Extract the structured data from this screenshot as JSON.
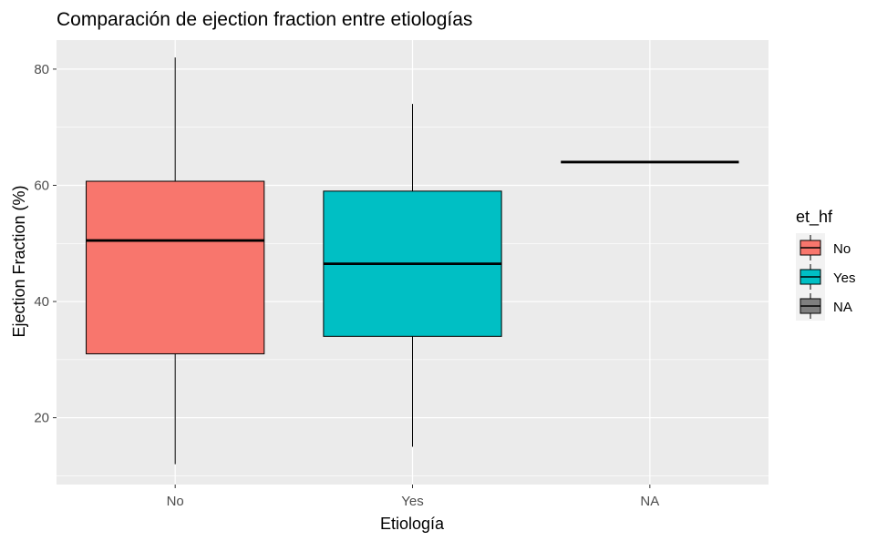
{
  "chart_data": {
    "type": "boxplot",
    "title": "Comparación de ejection fraction entre etiologías",
    "xlabel": "Etiología",
    "ylabel": "Ejection Fraction (%)",
    "categories": [
      "No",
      "Yes",
      "NA"
    ],
    "ylim": [
      8.5,
      85
    ],
    "y_ticks": [
      20,
      40,
      60,
      80
    ],
    "grid": true,
    "legend": {
      "title": "et_hf",
      "placement": "right",
      "items": [
        {
          "label": "No",
          "color": "#F8766D"
        },
        {
          "label": "Yes",
          "color": "#00BFC4"
        },
        {
          "label": "NA",
          "color": "#7F7F7F"
        }
      ]
    },
    "boxes": [
      {
        "category": "No",
        "min": 12,
        "q1": 31,
        "median": 50.5,
        "q3": 60.7,
        "max": 82,
        "fill": "#F8766D"
      },
      {
        "category": "Yes",
        "min": 15,
        "q1": 34,
        "median": 46.5,
        "q3": 59,
        "max": 74,
        "fill": "#00BFC4"
      },
      {
        "category": "NA",
        "min": 64,
        "q1": 64,
        "median": 64,
        "q3": 64,
        "max": 64,
        "fill": "#7F7F7F"
      }
    ],
    "colors": {
      "panel": "#EBEBEB",
      "grid": "#FFFFFF",
      "outline": "#000000"
    }
  }
}
